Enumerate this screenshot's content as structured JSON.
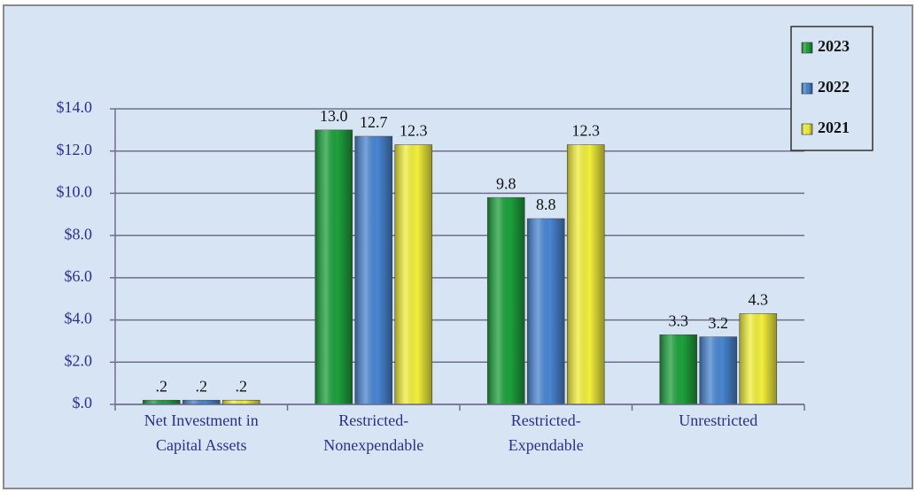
{
  "chart_data": {
    "type": "bar",
    "categories": [
      "Net Investment in\nCapital Assets",
      "Restricted-\nNonexpendable",
      "Restricted-\nExpendable",
      "Unrestricted"
    ],
    "series": [
      {
        "name": "2023",
        "color": "#1ea13c",
        "values": [
          0.2,
          13.0,
          9.8,
          3.3
        ],
        "value_labels": [
          ".2",
          "13.0",
          "9.8",
          "3.3"
        ]
      },
      {
        "name": "2022",
        "color": "#4a86d2",
        "values": [
          0.2,
          12.7,
          8.8,
          3.2
        ],
        "value_labels": [
          ".2",
          "12.7",
          "8.8",
          "3.2"
        ]
      },
      {
        "name": "2021",
        "color": "#f2ef3c",
        "values": [
          0.2,
          12.3,
          12.3,
          4.3
        ],
        "value_labels": [
          ".2",
          "12.3",
          "12.3",
          "4.3"
        ]
      }
    ],
    "ylim": [
      0,
      14
    ],
    "yticks": [
      {
        "value": 0,
        "label": "$.0"
      },
      {
        "value": 2,
        "label": "$2.0"
      },
      {
        "value": 4,
        "label": "$4.0"
      },
      {
        "value": 6,
        "label": "$6.0"
      },
      {
        "value": 8,
        "label": "$8.0"
      },
      {
        "value": 10,
        "label": "$10.0"
      },
      {
        "value": 12,
        "label": "$12.0"
      },
      {
        "value": 14,
        "label": "$14.0"
      }
    ],
    "grid": true,
    "legend": "top-right"
  }
}
